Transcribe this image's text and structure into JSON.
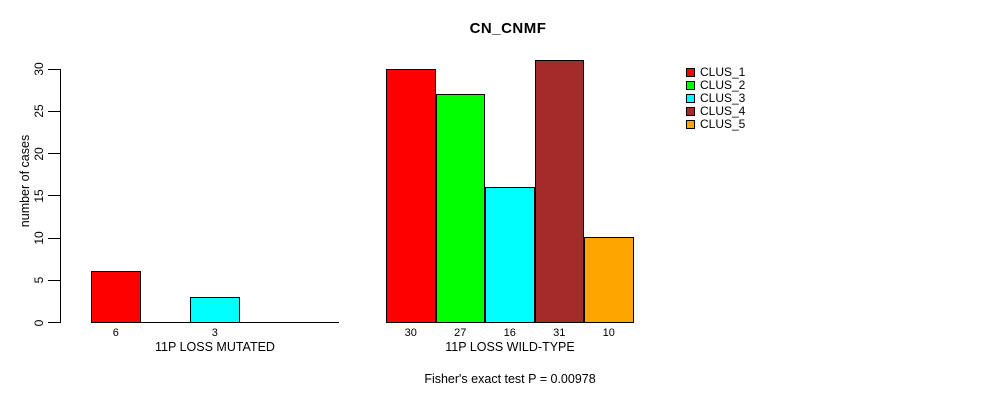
{
  "title": "CN_CNMF",
  "chart_data": {
    "type": "bar",
    "title": "CN_CNMF",
    "ylabel": "number of cases",
    "xlabel": "",
    "ylim": [
      0,
      30
    ],
    "yticks": [
      0,
      5,
      10,
      15,
      20,
      25,
      30
    ],
    "grid": false,
    "legend_position": "right",
    "legend": [
      {
        "label": "CLUS_1",
        "color": "#FF0000"
      },
      {
        "label": "CLUS_2",
        "color": "#00FF00"
      },
      {
        "label": "CLUS_3",
        "color": "#00FFFF"
      },
      {
        "label": "CLUS_4",
        "color": "#A52A2A"
      },
      {
        "label": "CLUS_5",
        "color": "#FFA500"
      }
    ],
    "groups": [
      {
        "xlabel": "11P LOSS MUTATED",
        "categories": [
          "CLUS_1",
          "CLUS_2",
          "CLUS_3",
          "CLUS_4",
          "CLUS_5"
        ],
        "values": [
          6,
          0,
          3,
          0,
          0
        ],
        "visible_value_labels": [
          "6",
          "3"
        ]
      },
      {
        "xlabel": "11P LOSS WILD-TYPE",
        "categories": [
          "CLUS_1",
          "CLUS_2",
          "CLUS_3",
          "CLUS_4",
          "CLUS_5"
        ],
        "values": [
          30,
          27,
          16,
          31,
          10
        ],
        "visible_value_labels": [
          "30",
          "27",
          "16",
          "31",
          "10"
        ]
      }
    ],
    "footnote": "Fisher's exact test P = 0.00978"
  },
  "colors": {
    "background": "#FFFFFF",
    "axis": "#000000",
    "bar_border": "#000000",
    "text": "#000000"
  }
}
